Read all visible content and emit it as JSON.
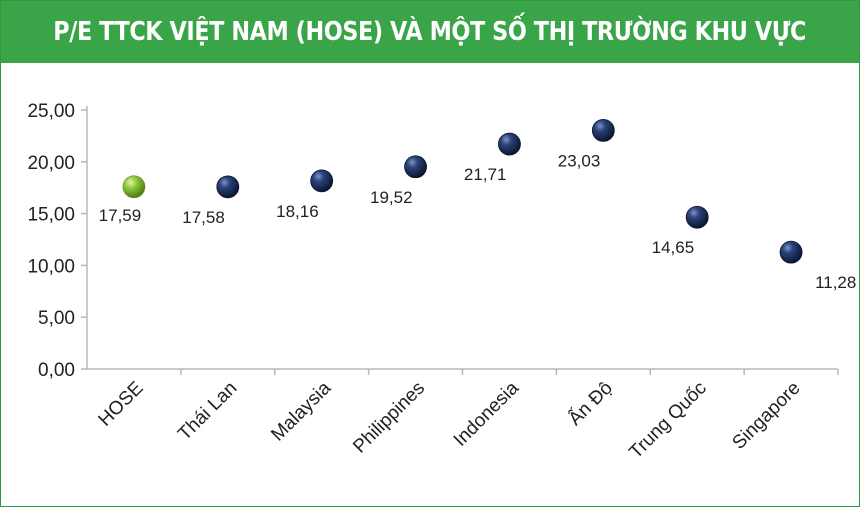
{
  "header": {
    "title": "P/E TTCK VIỆT NAM (HOSE) VÀ MỘT SỐ THỊ TRƯỜNG KHU VỰC"
  },
  "colors": {
    "header_bg": "#3aa548",
    "highlight_marker": "#8dc63f",
    "series_marker": "#1b2f5c",
    "axis": "#b8b8b8"
  },
  "chart_data": {
    "type": "scatter",
    "title": "P/E TTCK VIỆT NAM (HOSE) VÀ MỘT SỐ THỊ TRƯỜNG KHU VỰC",
    "xlabel": "",
    "ylabel": "",
    "ylim": [
      0,
      25
    ],
    "yticks": [
      "0,00",
      "5,00",
      "10,00",
      "15,00",
      "20,00",
      "25,00"
    ],
    "grid": false,
    "legend": "none",
    "categories": [
      "HOSE",
      "Thái Lan",
      "Malaysia",
      "Philippines",
      "Indonesia",
      "Ấn Độ",
      "Trung Quốc",
      "Singapore"
    ],
    "values": [
      17.59,
      17.58,
      18.16,
      19.52,
      21.71,
      23.03,
      14.65,
      11.28
    ],
    "value_labels": [
      "17,59",
      "17,58",
      "18,16",
      "19,52",
      "21,71",
      "23,03",
      "14,65",
      "11,28"
    ],
    "highlight_category": "HOSE"
  }
}
